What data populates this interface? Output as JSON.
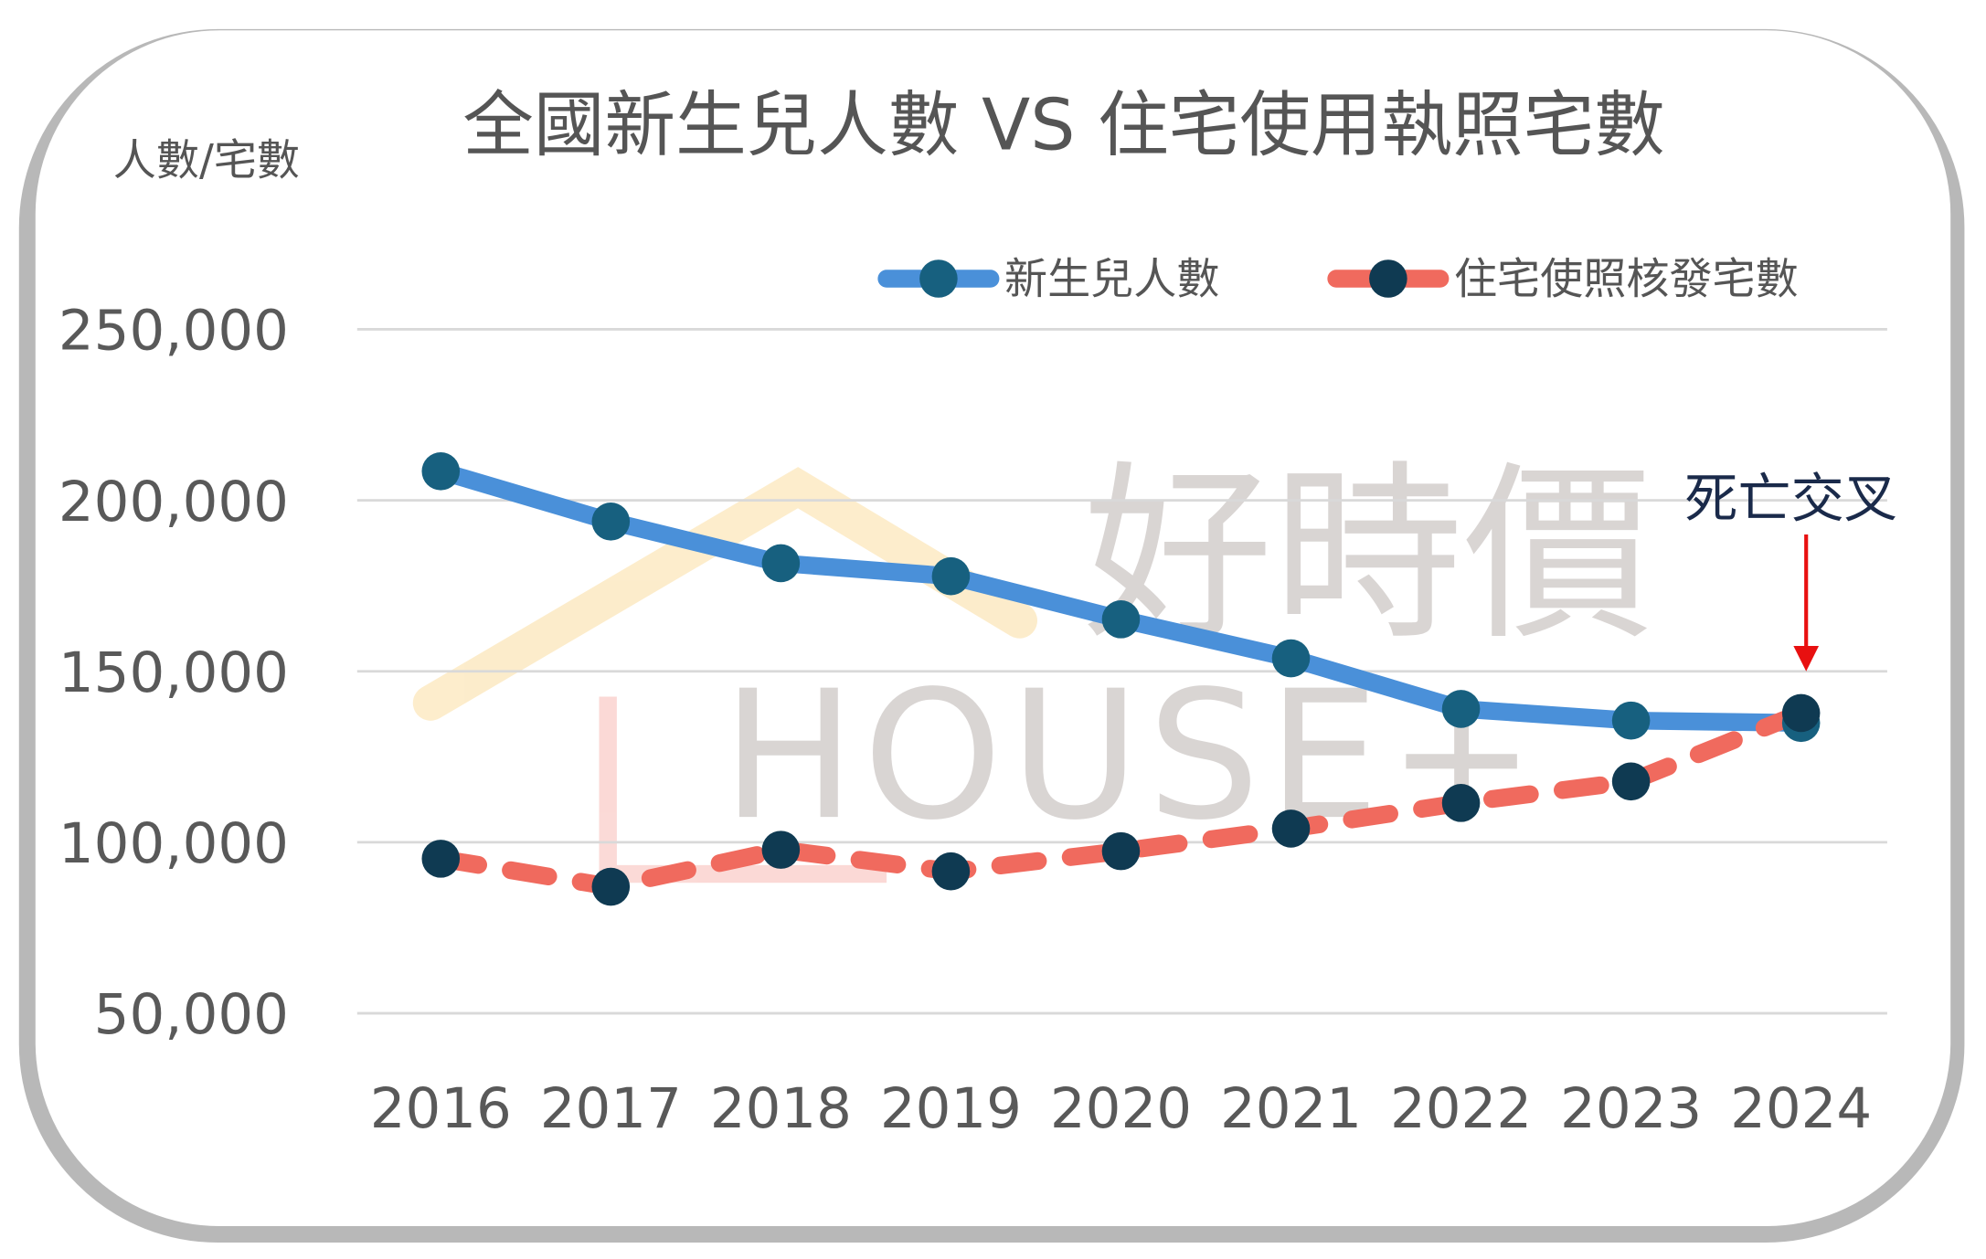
{
  "chart_data": {
    "type": "line",
    "title": "全國新生兒人數 VS 住宅使用執照宅數",
    "ylabel": "人數/宅數",
    "xlabel": "",
    "categories": [
      "2016",
      "2017",
      "2018",
      "2019",
      "2020",
      "2021",
      "2022",
      "2023",
      "2024"
    ],
    "y_ticks": [
      "250,000",
      "200,000",
      "150,000",
      "100,000",
      "50,000"
    ],
    "y_tick_values": [
      250000,
      200000,
      150000,
      100000,
      50000
    ],
    "ylim": [
      50000,
      250000
    ],
    "grid": true,
    "legend_placement": "top-right",
    "series": [
      {
        "name": "新生兒人數",
        "color": "#4a90d9",
        "marker_color": "#17607f",
        "dash": false,
        "values": [
          208500,
          193800,
          181600,
          177800,
          165200,
          153800,
          139000,
          135600,
          134900
        ]
      },
      {
        "name": "住宅使照核發宅數",
        "color": "#f06a5e",
        "marker_color": "#0f3a52",
        "dash": true,
        "values": [
          95200,
          87000,
          97800,
          91500,
          97400,
          104000,
          111500,
          117800,
          137800
        ]
      }
    ],
    "annotation": {
      "text": "死亡交叉",
      "category": "2024",
      "color": "#1a2a4a",
      "arrow_color": "#e81010"
    },
    "watermark": {
      "text": "好時價 HOUSE+"
    }
  }
}
